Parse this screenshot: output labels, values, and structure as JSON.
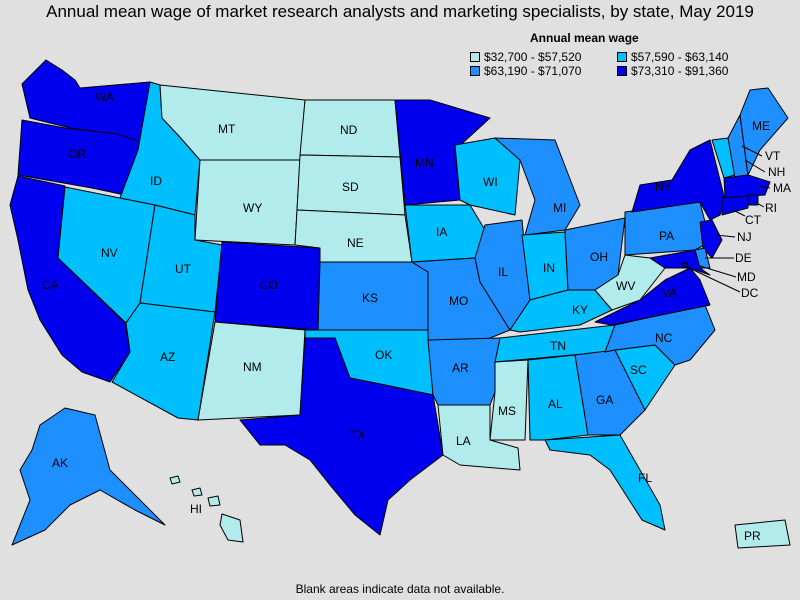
{
  "title": "Annual mean wage of market research analysts and marketing specialists, by state, May 2019",
  "legend": {
    "title": "Annual mean wage",
    "bins": [
      {
        "label": "$32,700 - $57,520",
        "color": "#b2ebeb"
      },
      {
        "label": "$57,590 - $63,140",
        "color": "#00bfff"
      },
      {
        "label": "$63,190 - $71,070",
        "color": "#1e8fff"
      },
      {
        "label": "$73,310 - $91,360",
        "color": "#0000ee"
      }
    ]
  },
  "footnote": "Blank areas indicate data not available.",
  "states": {
    "WA": {
      "label": "WA",
      "bin": 3
    },
    "OR": {
      "label": "OR",
      "bin": 3
    },
    "CA": {
      "label": "CA",
      "bin": 3
    },
    "NV": {
      "label": "NV",
      "bin": 1
    },
    "ID": {
      "label": "ID",
      "bin": 1
    },
    "MT": {
      "label": "MT",
      "bin": 0
    },
    "WY": {
      "label": "WY",
      "bin": 0
    },
    "UT": {
      "label": "UT",
      "bin": 1
    },
    "AZ": {
      "label": "AZ",
      "bin": 1
    },
    "CO": {
      "label": "CO",
      "bin": 3
    },
    "NM": {
      "label": "NM",
      "bin": 0
    },
    "ND": {
      "label": "ND",
      "bin": 0
    },
    "SD": {
      "label": "SD",
      "bin": 0
    },
    "NE": {
      "label": "NE",
      "bin": 0
    },
    "KS": {
      "label": "KS",
      "bin": 2
    },
    "OK": {
      "label": "OK",
      "bin": 1
    },
    "TX": {
      "label": "TX",
      "bin": 3
    },
    "MN": {
      "label": "MN",
      "bin": 3
    },
    "IA": {
      "label": "IA",
      "bin": 1
    },
    "MO": {
      "label": "MO",
      "bin": 2
    },
    "AR": {
      "label": "AR",
      "bin": 2
    },
    "LA": {
      "label": "LA",
      "bin": 0
    },
    "WI": {
      "label": "WI",
      "bin": 1
    },
    "IL": {
      "label": "IL",
      "bin": 2
    },
    "MI": {
      "label": "MI",
      "bin": 2
    },
    "IN": {
      "label": "IN",
      "bin": 1
    },
    "OH": {
      "label": "OH",
      "bin": 2
    },
    "KY": {
      "label": "KY",
      "bin": 1
    },
    "TN": {
      "label": "TN",
      "bin": 1
    },
    "MS": {
      "label": "MS",
      "bin": 0
    },
    "AL": {
      "label": "AL",
      "bin": 1
    },
    "GA": {
      "label": "GA",
      "bin": 2
    },
    "FL": {
      "label": "FL",
      "bin": 1
    },
    "SC": {
      "label": "SC",
      "bin": 1
    },
    "NC": {
      "label": "NC",
      "bin": 2
    },
    "VA": {
      "label": "VA",
      "bin": 3
    },
    "WV": {
      "label": "WV",
      "bin": 0
    },
    "PA": {
      "label": "PA",
      "bin": 2
    },
    "NY": {
      "label": "NY",
      "bin": 3
    },
    "VT": {
      "label": "VT",
      "bin": 1
    },
    "NH": {
      "label": "NH",
      "bin": 2
    },
    "ME": {
      "label": "ME",
      "bin": 2
    },
    "MA": {
      "label": "MA",
      "bin": 3
    },
    "RI": {
      "label": "RI",
      "bin": 3
    },
    "CT": {
      "label": "CT",
      "bin": 3
    },
    "NJ": {
      "label": "NJ",
      "bin": 3
    },
    "DE": {
      "label": "DE",
      "bin": 2
    },
    "MD": {
      "label": "MD",
      "bin": 3
    },
    "DC": {
      "label": "DC",
      "bin": 3
    },
    "AK": {
      "label": "AK",
      "bin": 2
    },
    "HI": {
      "label": "HI",
      "bin": 0
    },
    "PR": {
      "label": "PR",
      "bin": 0
    }
  }
}
